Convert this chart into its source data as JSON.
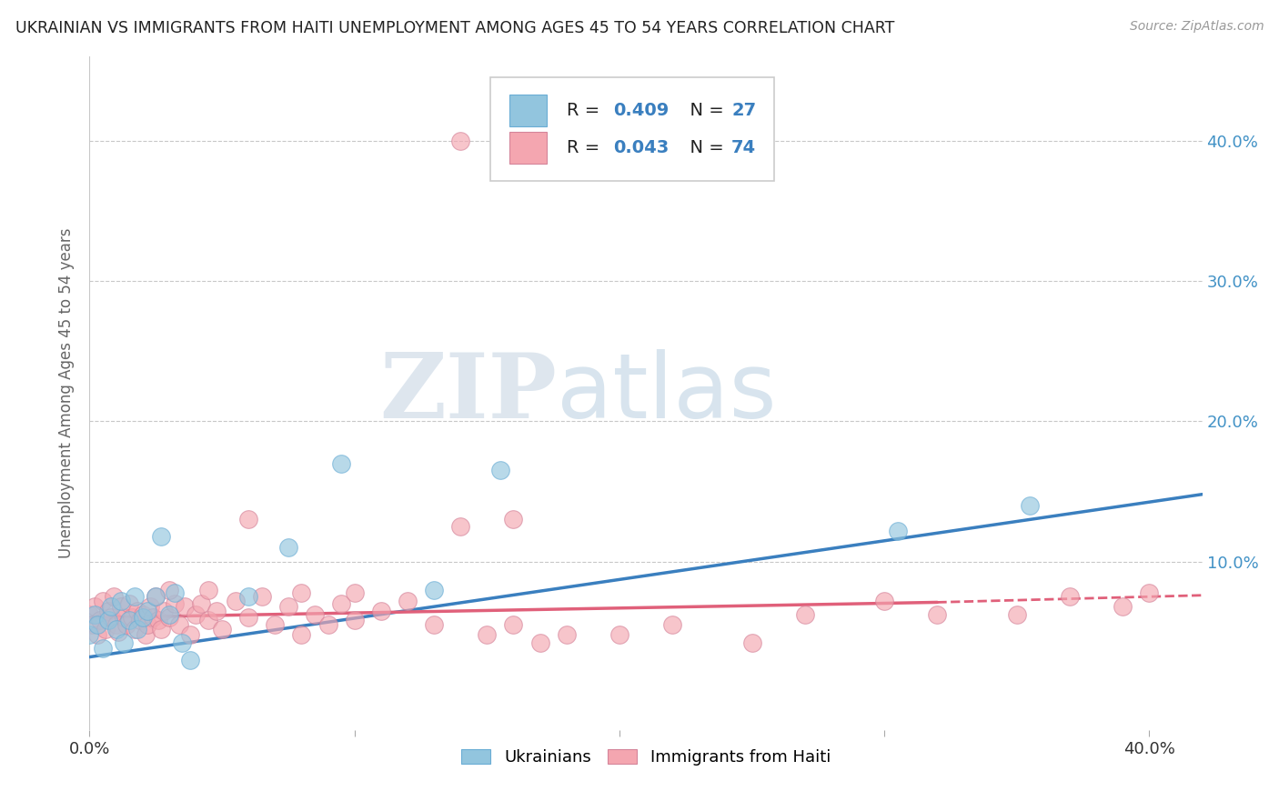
{
  "title": "UKRAINIAN VS IMMIGRANTS FROM HAITI UNEMPLOYMENT AMONG AGES 45 TO 54 YEARS CORRELATION CHART",
  "source": "Source: ZipAtlas.com",
  "ylabel": "Unemployment Among Ages 45 to 54 years",
  "xlim": [
    0.0,
    0.42
  ],
  "ylim": [
    -0.02,
    0.46
  ],
  "yticks": [
    0.0,
    0.1,
    0.2,
    0.3,
    0.4
  ],
  "ytick_labels_right": [
    "",
    "10.0%",
    "20.0%",
    "30.0%",
    "40.0%"
  ],
  "xticks": [
    0.0,
    0.1,
    0.2,
    0.3,
    0.4
  ],
  "xtick_labels": [
    "0.0%",
    "",
    "",
    "",
    "40.0%"
  ],
  "legend_labels": [
    "Ukrainians",
    "Immigrants from Haiti"
  ],
  "blue_color": "#92c5de",
  "pink_color": "#f4a6b0",
  "blue_line_color": "#3a7fbf",
  "pink_line_color": "#e0607a",
  "watermark_zip": "ZIP",
  "watermark_atlas": "atlas",
  "background_color": "#ffffff",
  "grid_color": "#c8c8c8",
  "blue_scatter_x": [
    0.0,
    0.002,
    0.003,
    0.005,
    0.007,
    0.008,
    0.01,
    0.012,
    0.013,
    0.015,
    0.017,
    0.018,
    0.02,
    0.022,
    0.025,
    0.027,
    0.03,
    0.032,
    0.035,
    0.038,
    0.06,
    0.075,
    0.095,
    0.13,
    0.155,
    0.305,
    0.355
  ],
  "blue_scatter_y": [
    0.048,
    0.062,
    0.055,
    0.038,
    0.058,
    0.068,
    0.052,
    0.072,
    0.042,
    0.058,
    0.075,
    0.052,
    0.06,
    0.065,
    0.075,
    0.118,
    0.062,
    0.078,
    0.042,
    0.03,
    0.075,
    0.11,
    0.17,
    0.08,
    0.165,
    0.122,
    0.14
  ],
  "pink_scatter_x": [
    0.0,
    0.001,
    0.002,
    0.003,
    0.004,
    0.005,
    0.006,
    0.007,
    0.008,
    0.009,
    0.01,
    0.011,
    0.012,
    0.013,
    0.014,
    0.015,
    0.016,
    0.017,
    0.018,
    0.019,
    0.02,
    0.021,
    0.022,
    0.023,
    0.024,
    0.025,
    0.026,
    0.027,
    0.028,
    0.03,
    0.032,
    0.034,
    0.036,
    0.038,
    0.04,
    0.042,
    0.045,
    0.048,
    0.05,
    0.055,
    0.06,
    0.065,
    0.07,
    0.075,
    0.08,
    0.085,
    0.09,
    0.095,
    0.1,
    0.11,
    0.12,
    0.13,
    0.14,
    0.15,
    0.16,
    0.17,
    0.18,
    0.2,
    0.22,
    0.25,
    0.27,
    0.3,
    0.32,
    0.35,
    0.37,
    0.39,
    0.4,
    0.03,
    0.045,
    0.06,
    0.08,
    0.1,
    0.14,
    0.16
  ],
  "pink_scatter_y": [
    0.062,
    0.055,
    0.068,
    0.048,
    0.058,
    0.072,
    0.052,
    0.065,
    0.06,
    0.075,
    0.055,
    0.05,
    0.068,
    0.06,
    0.055,
    0.07,
    0.06,
    0.052,
    0.065,
    0.058,
    0.062,
    0.048,
    0.055,
    0.068,
    0.06,
    0.075,
    0.058,
    0.052,
    0.065,
    0.06,
    0.07,
    0.055,
    0.068,
    0.048,
    0.062,
    0.07,
    0.058,
    0.065,
    0.052,
    0.072,
    0.06,
    0.075,
    0.055,
    0.068,
    0.048,
    0.062,
    0.055,
    0.07,
    0.058,
    0.065,
    0.072,
    0.055,
    0.125,
    0.048,
    0.055,
    0.042,
    0.048,
    0.048,
    0.055,
    0.042,
    0.062,
    0.072,
    0.062,
    0.062,
    0.075,
    0.068,
    0.078,
    0.08,
    0.08,
    0.13,
    0.078,
    0.078,
    0.4,
    0.13
  ],
  "blue_line_y_start": 0.032,
  "blue_line_y_end": 0.148,
  "pink_line_solid_x_end": 0.32,
  "pink_line_y_start": 0.06,
  "pink_line_y_end": 0.074,
  "pink_line_y_at_solid_end": 0.071,
  "pink_line_dashed_y_end": 0.076
}
